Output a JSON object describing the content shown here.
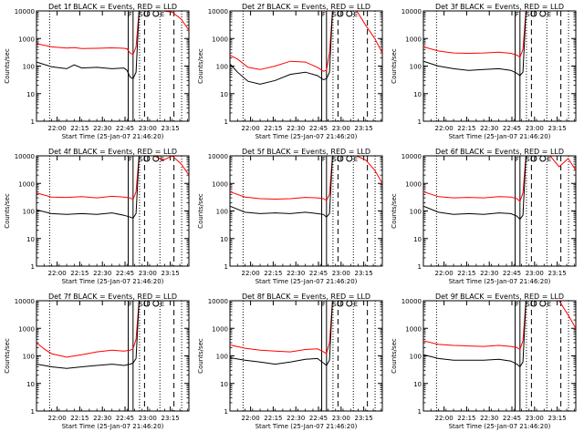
{
  "chart_data": {
    "type": "line",
    "layout": "3x3 grid",
    "y_scale": "log",
    "ylim": [
      1,
      10000
    ],
    "ylabel": "Counts/sec",
    "xlabel": "Start Time (25-Jan-07 21:46:20)",
    "x_ticks": [
      "22:00",
      "22:15",
      "22:30",
      "22:45",
      "23:00",
      "23:15"
    ],
    "y_ticks": [
      "1",
      "10",
      "100",
      "1000",
      "10000"
    ],
    "x_tick_minutes": [
      13.67,
      28.67,
      43.67,
      58.67,
      73.67,
      88.67
    ],
    "x_range_minutes": [
      0,
      101
    ],
    "series_legend": {
      "events": "BLACK = Events",
      "lld": "RED = LLD"
    },
    "colors": {
      "events": "#000000",
      "lld": "#ff0000",
      "axis": "#000000"
    },
    "markers": {
      "dotted_minutes": [
        8.7,
        68.3,
        81.8,
        96.2
      ],
      "solid_minutes": [
        60.8,
        64.0
      ],
      "dashed_minutes": [
        71.6,
        91.1
      ],
      "letters": [
        "F",
        "S",
        "E"
      ]
    },
    "panels": [
      {
        "title": "Det 1f BLACK = Events, RED = LLD",
        "x_minutes": [
          0,
          10,
          20,
          25,
          30,
          40,
          50,
          58,
          60,
          62,
          64,
          66,
          68,
          72,
          78,
          84,
          90,
          96,
          101
        ],
        "events": [
          140,
          95,
          80,
          110,
          85,
          90,
          80,
          85,
          70,
          40,
          35,
          60,
          10000,
          10000,
          10000,
          10000,
          10000,
          10000,
          10000
        ],
        "lld": [
          650,
          500,
          450,
          470,
          430,
          440,
          460,
          440,
          420,
          300,
          260,
          500,
          10000,
          10000,
          10000,
          10000,
          9000,
          5000,
          2000
        ]
      },
      {
        "title": "Det 2f BLACK = Events, RED = LLD",
        "x_minutes": [
          0,
          5,
          12,
          20,
          30,
          40,
          50,
          58,
          62,
          64,
          66,
          68,
          72,
          78,
          84,
          90,
          96,
          101
        ],
        "events": [
          120,
          60,
          28,
          22,
          30,
          50,
          60,
          45,
          32,
          35,
          60,
          10000,
          10000,
          10000,
          10000,
          10000,
          10000,
          10000
        ],
        "lld": [
          250,
          180,
          90,
          75,
          100,
          150,
          140,
          90,
          65,
          70,
          300,
          10000,
          10000,
          10000,
          10000,
          3000,
          1000,
          300
        ]
      },
      {
        "title": "Det 3f BLACK = Events, RED = LLD",
        "x_minutes": [
          0,
          10,
          20,
          30,
          40,
          50,
          58,
          62,
          64,
          66,
          68,
          72,
          78,
          84,
          90,
          96,
          101
        ],
        "events": [
          150,
          100,
          80,
          70,
          75,
          80,
          70,
          55,
          45,
          60,
          10000,
          10000,
          10000,
          10000,
          10000,
          10000,
          10000
        ],
        "lld": [
          500,
          350,
          300,
          290,
          300,
          320,
          290,
          250,
          210,
          400,
          10000,
          10000,
          10000,
          10000,
          10000,
          10000,
          10000
        ]
      },
      {
        "title": "Det 4f BLACK = Events, RED = LLD",
        "x_minutes": [
          0,
          10,
          20,
          30,
          40,
          50,
          58,
          62,
          64,
          66,
          68,
          72,
          78,
          84,
          90,
          96,
          101
        ],
        "events": [
          110,
          80,
          75,
          80,
          75,
          85,
          70,
          60,
          55,
          80,
          10000,
          10000,
          10000,
          10000,
          10000,
          10000,
          10000
        ],
        "lld": [
          450,
          320,
          310,
          330,
          300,
          340,
          320,
          300,
          260,
          500,
          10000,
          10000,
          10000,
          7000,
          10000,
          5000,
          2000
        ]
      },
      {
        "title": "Det 5f BLACK = Events, RED = LLD",
        "x_minutes": [
          0,
          10,
          20,
          30,
          40,
          50,
          58,
          62,
          64,
          66,
          68,
          72,
          78,
          84,
          90,
          96,
          101
        ],
        "events": [
          150,
          90,
          80,
          85,
          80,
          90,
          80,
          75,
          60,
          80,
          10000,
          10000,
          10000,
          10000,
          10000,
          10000,
          10000
        ],
        "lld": [
          500,
          320,
          280,
          270,
          280,
          310,
          300,
          280,
          240,
          400,
          10000,
          10000,
          10000,
          10000,
          7000,
          3000,
          1000
        ]
      },
      {
        "title": "Det 6f BLACK = Events, RED = LLD",
        "x_minutes": [
          0,
          10,
          20,
          30,
          40,
          50,
          58,
          62,
          64,
          66,
          68,
          72,
          78,
          84,
          90,
          96,
          101
        ],
        "events": [
          150,
          90,
          75,
          80,
          75,
          85,
          80,
          65,
          50,
          70,
          10000,
          10000,
          10000,
          10000,
          10000,
          10000,
          10000
        ],
        "lld": [
          500,
          330,
          300,
          310,
          300,
          330,
          320,
          280,
          220,
          450,
          10000,
          10000,
          10000,
          10000,
          4000,
          8000,
          3000
        ]
      },
      {
        "title": "Det 7f BLACK = Events, RED = LLD",
        "x_minutes": [
          0,
          5,
          10,
          20,
          30,
          40,
          50,
          58,
          62,
          64,
          66,
          68,
          72,
          78,
          84,
          90,
          96,
          101
        ],
        "events": [
          50,
          45,
          40,
          35,
          40,
          45,
          50,
          45,
          50,
          55,
          80,
          10000,
          10000,
          10000,
          10000,
          10000,
          10000,
          10000
        ],
        "lld": [
          300,
          180,
          120,
          90,
          110,
          140,
          160,
          150,
          160,
          180,
          400,
          10000,
          10000,
          10000,
          10000,
          10000,
          10000,
          10000
        ]
      },
      {
        "title": "Det 8f BLACK = Events, RED = LLD",
        "x_minutes": [
          0,
          10,
          20,
          30,
          40,
          50,
          58,
          62,
          64,
          66,
          68,
          72,
          78,
          84,
          90,
          96,
          101
        ],
        "events": [
          85,
          70,
          60,
          50,
          60,
          75,
          80,
          55,
          45,
          70,
          10000,
          10000,
          10000,
          10000,
          10000,
          10000,
          10000
        ],
        "lld": [
          250,
          190,
          160,
          150,
          140,
          170,
          180,
          140,
          120,
          300,
          10000,
          10000,
          10000,
          10000,
          10000,
          10000,
          10000
        ]
      },
      {
        "title": "Det 9f BLACK = Events, RED = LLD",
        "x_minutes": [
          0,
          10,
          20,
          30,
          40,
          50,
          58,
          62,
          64,
          66,
          68,
          72,
          78,
          84,
          90,
          96,
          101
        ],
        "events": [
          110,
          80,
          70,
          70,
          70,
          75,
          65,
          50,
          40,
          60,
          10000,
          10000,
          10000,
          10000,
          10000,
          10000,
          10000
        ],
        "lld": [
          350,
          260,
          240,
          230,
          220,
          240,
          220,
          200,
          170,
          350,
          10000,
          10000,
          10000,
          10000,
          10000,
          3000,
          1000
        ]
      }
    ]
  }
}
